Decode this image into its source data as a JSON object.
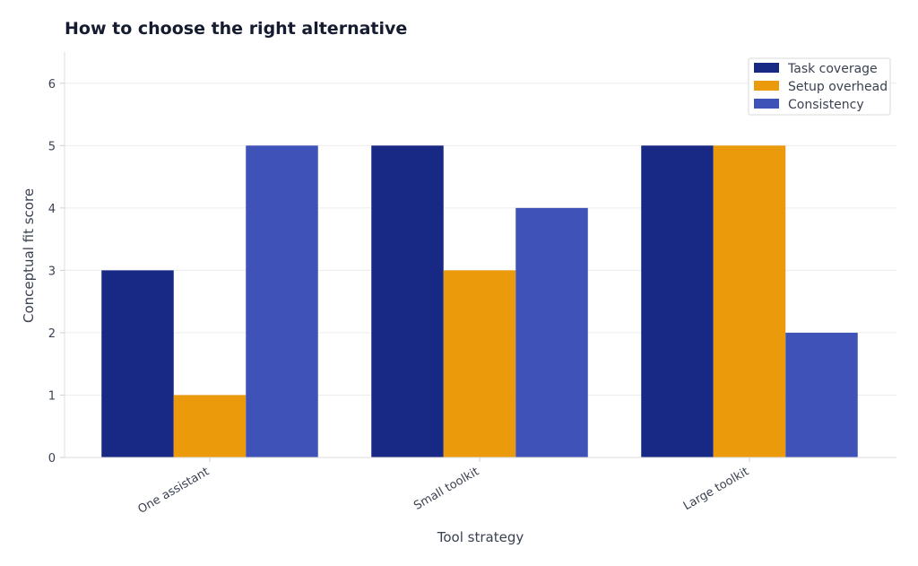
{
  "chart_data": {
    "type": "bar",
    "title": "How to choose the right alternative",
    "xlabel": "Tool strategy",
    "ylabel": "Conceptual fit score",
    "categories": [
      "One assistant",
      "Small toolkit",
      "Large toolkit"
    ],
    "series": [
      {
        "name": "Task coverage",
        "values": [
          3,
          5,
          5
        ],
        "color": "#172984"
      },
      {
        "name": "Setup overhead",
        "values": [
          1,
          3,
          5
        ],
        "color": "#ea9a0b"
      },
      {
        "name": "Consistency",
        "values": [
          5,
          4,
          2
        ],
        "color": "#3f52b8"
      }
    ],
    "yticks": [
      0,
      1,
      2,
      3,
      4,
      5,
      6
    ],
    "ylim": [
      0,
      6.5
    ],
    "grid": true,
    "legend_position": "top-right"
  }
}
